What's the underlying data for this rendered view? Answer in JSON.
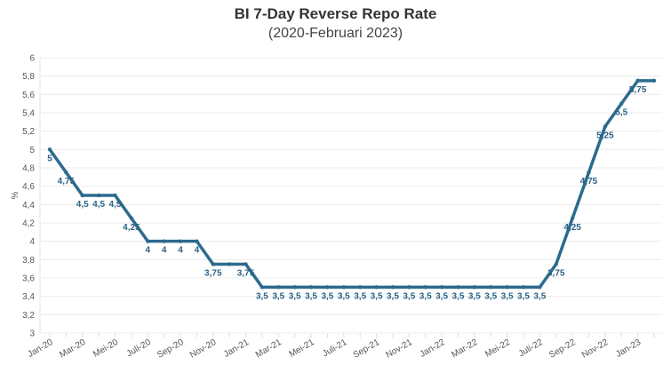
{
  "chart_data": {
    "type": "line",
    "title": "BI 7-Day Reverse Repo Rate",
    "subtitle": "(2020-Februari 2023)",
    "ylabel": "%",
    "xlabel": "",
    "ylim": [
      3,
      6
    ],
    "yticks": [
      "3",
      "3,2",
      "3,4",
      "3,6",
      "3,8",
      "4",
      "4,2",
      "4,4",
      "4,6",
      "4,8",
      "5",
      "5,2",
      "5,4",
      "5,6",
      "5,8",
      "6"
    ],
    "grid": true,
    "line_color": "#2c6a8e",
    "x": [
      "Jan-20",
      "Feb-20",
      "Mar-20",
      "Apr-20",
      "Mei-20",
      "Jun-20",
      "Juli-20",
      "Agu-20",
      "Sep-20",
      "Okt-20",
      "Nov-20",
      "Des-20",
      "Jan-21",
      "Feb-21",
      "Mar-21",
      "Apr-21",
      "Mei-21",
      "Jun-21",
      "Juli-21",
      "Agu-21",
      "Sep-21",
      "Okt-21",
      "Nov-21",
      "Des-21",
      "Jan-22",
      "Feb-22",
      "Mar-22",
      "Apr-22",
      "Mei-22",
      "Jun-22",
      "Juli-22",
      "Agu-22",
      "Sep-22",
      "Okt-22",
      "Nov-22",
      "Des-22",
      "Jan-23",
      "Feb-23"
    ],
    "xtick_labels": [
      "Jan-20",
      "Mar-20",
      "Mei-20",
      "Juli-20",
      "Sep-20",
      "Nov-20",
      "Jan-21",
      "Mar-21",
      "Mei-21",
      "Juli-21",
      "Sep-21",
      "Nov-21",
      "Jan-22",
      "Mar-22",
      "Mei-22",
      "Juli-22",
      "Sep-22",
      "Nov-22",
      "Jan-23"
    ],
    "values": [
      5,
      4.75,
      4.5,
      4.5,
      4.5,
      4.25,
      4,
      4,
      4,
      4,
      3.75,
      3.75,
      3.75,
      3.5,
      3.5,
      3.5,
      3.5,
      3.5,
      3.5,
      3.5,
      3.5,
      3.5,
      3.5,
      3.5,
      3.5,
      3.5,
      3.5,
      3.5,
      3.5,
      3.5,
      3.5,
      3.75,
      4.25,
      4.75,
      5.25,
      5.5,
      5.75,
      5.75
    ],
    "data_labels": [
      "5",
      "4,75",
      "4,5",
      "4,5",
      "4,5",
      "4,25",
      "4",
      "4",
      "4",
      "4",
      "3,75",
      null,
      "3,75",
      "3,5",
      "3,5",
      "3,5",
      "3,5",
      "3,5",
      "3,5",
      "3,5",
      "3,5",
      "3,5",
      "3,5",
      "3,5",
      "3,5",
      "3,5",
      "3,5",
      "3,5",
      "3,5",
      "3,5",
      "3,5",
      "3,75",
      "4,25",
      "4,75",
      "5,25",
      "5,5",
      "5,75",
      null
    ]
  }
}
